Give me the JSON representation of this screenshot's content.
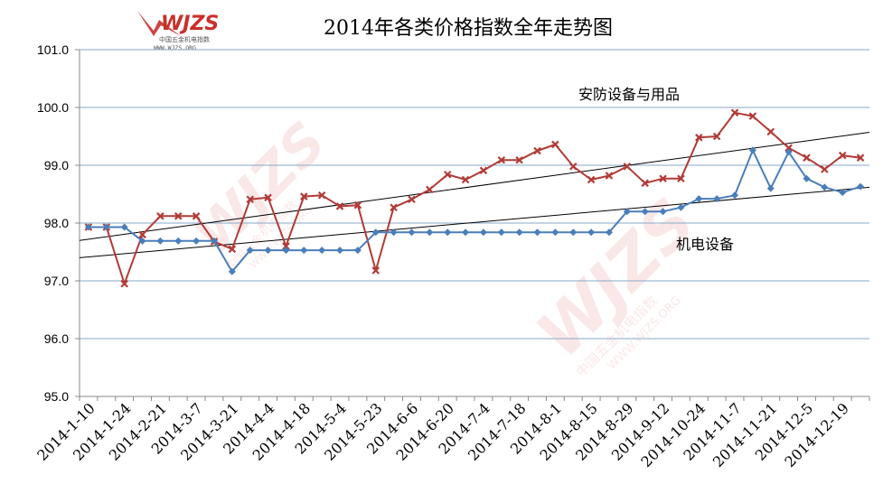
{
  "logo": {
    "mark": "WJZS",
    "subtitle": "中国五金机电指数",
    "url": "WWW.WJZS.ORG"
  },
  "colors": {
    "red_series": "#b23a36",
    "blue_series": "#4a7ebb",
    "trend": "#000000",
    "grid": "#86a8c8"
  },
  "chart_data": {
    "type": "line",
    "title": "2014年各类价格指数全年走势图",
    "xlabel": "",
    "ylabel": "",
    "ylim": [
      95.0,
      101.0
    ],
    "yticks": [
      "95.0",
      "96.0",
      "97.0",
      "98.0",
      "99.0",
      "100.0",
      "101.0"
    ],
    "grid": true,
    "x_tick_labels": [
      "2014-1-10",
      "2014-1-24",
      "2014-2-21",
      "2014-3-7",
      "2014-3-21",
      "2014-4-4",
      "2014-4-18",
      "2014-5-4",
      "2014-5-23",
      "2014-6-6",
      "2014-6-20",
      "2014-7-4",
      "2014-7-18",
      "2014-8-1",
      "2014-8-15",
      "2014-8-29",
      "2014-9-12",
      "2014-10-24",
      "2014-11-7",
      "2014-11-21",
      "2014-12-5",
      "2014-12-19"
    ],
    "point_count": 44,
    "series": [
      {
        "name": "安防设备与用品",
        "color": "#b23a36",
        "marker": "x",
        "values": [
          97.93,
          97.93,
          96.95,
          97.8,
          98.12,
          98.12,
          98.12,
          97.68,
          97.55,
          98.41,
          98.44,
          97.6,
          98.46,
          98.48,
          98.29,
          98.31,
          97.18,
          98.27,
          98.41,
          98.58,
          98.84,
          98.75,
          98.91,
          99.09,
          99.09,
          99.25,
          99.36,
          98.98,
          98.75,
          98.82,
          98.98,
          98.69,
          98.77,
          98.77,
          99.48,
          99.5,
          99.91,
          99.85,
          99.58,
          99.3,
          99.13,
          98.93,
          99.17,
          99.13
        ]
      },
      {
        "name": "机电设备",
        "color": "#4a7ebb",
        "marker": "diamond",
        "values": [
          97.93,
          97.93,
          97.93,
          97.69,
          97.69,
          97.69,
          97.69,
          97.69,
          97.16,
          97.53,
          97.53,
          97.53,
          97.53,
          97.53,
          97.53,
          97.53,
          97.84,
          97.84,
          97.84,
          97.84,
          97.84,
          97.84,
          97.84,
          97.84,
          97.84,
          97.84,
          97.84,
          97.84,
          97.84,
          97.84,
          98.2,
          98.2,
          98.2,
          98.27,
          98.42,
          98.42,
          98.48,
          99.26,
          98.6,
          99.23,
          98.77,
          98.62,
          98.53,
          98.63
        ]
      }
    ],
    "trendlines": [
      {
        "series": "安防设备与用品",
        "start": 97.7,
        "end": 99.57
      },
      {
        "series": "机电设备",
        "start": 97.4,
        "end": 98.62
      }
    ]
  }
}
